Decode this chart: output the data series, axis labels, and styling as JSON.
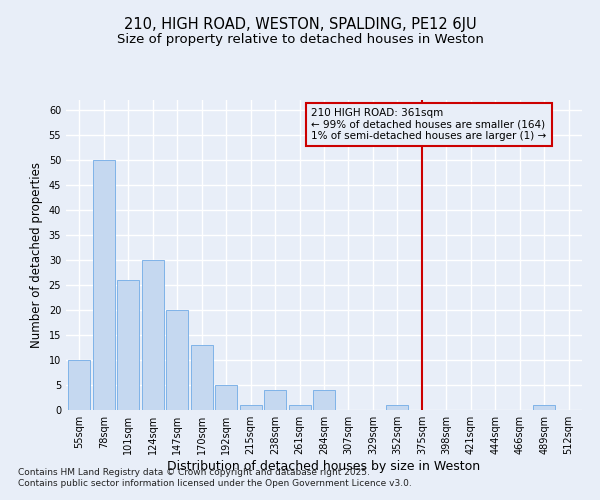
{
  "title": "210, HIGH ROAD, WESTON, SPALDING, PE12 6JU",
  "subtitle": "Size of property relative to detached houses in Weston",
  "xlabel": "Distribution of detached houses by size in Weston",
  "ylabel": "Number of detached properties",
  "categories": [
    "55sqm",
    "78sqm",
    "101sqm",
    "124sqm",
    "147sqm",
    "170sqm",
    "192sqm",
    "215sqm",
    "238sqm",
    "261sqm",
    "284sqm",
    "307sqm",
    "329sqm",
    "352sqm",
    "375sqm",
    "398sqm",
    "421sqm",
    "444sqm",
    "466sqm",
    "489sqm",
    "512sqm"
  ],
  "values": [
    10,
    50,
    26,
    30,
    20,
    13,
    5,
    1,
    4,
    1,
    4,
    0,
    0,
    1,
    0,
    0,
    0,
    0,
    0,
    1,
    0
  ],
  "bar_color": "#c5d8f0",
  "bar_edge_color": "#7fb3e8",
  "background_color": "#e8eef8",
  "grid_color": "#ffffff",
  "vline_x_index": 14,
  "vline_color": "#cc0000",
  "annotation_text": "210 HIGH ROAD: 361sqm\n← 99% of detached houses are smaller (164)\n1% of semi-detached houses are larger (1) →",
  "annotation_box_color": "#cc0000",
  "ylim": [
    0,
    62
  ],
  "yticks": [
    0,
    5,
    10,
    15,
    20,
    25,
    30,
    35,
    40,
    45,
    50,
    55,
    60
  ],
  "footer": "Contains HM Land Registry data © Crown copyright and database right 2025.\nContains public sector information licensed under the Open Government Licence v3.0.",
  "title_fontsize": 10.5,
  "subtitle_fontsize": 9.5,
  "xlabel_fontsize": 9,
  "ylabel_fontsize": 8.5,
  "tick_fontsize": 7,
  "annotation_fontsize": 7.5,
  "footer_fontsize": 6.5
}
